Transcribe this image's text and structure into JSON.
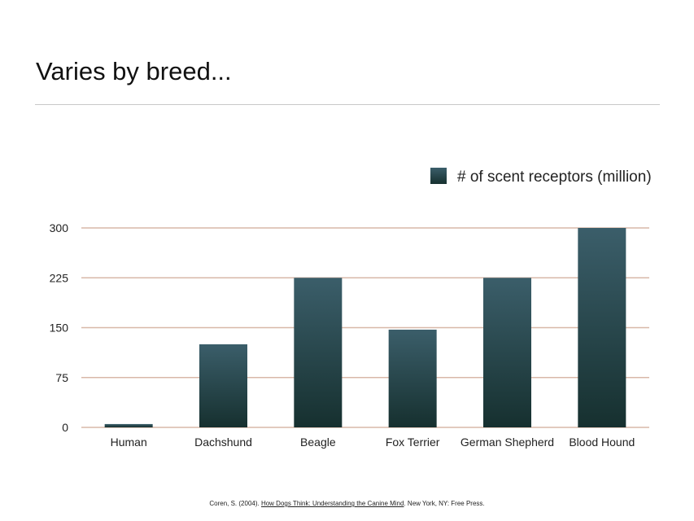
{
  "slide": {
    "title": "Varies by breed..."
  },
  "citation": {
    "prefix": "Coren, S. (2004). ",
    "link_text": "How Dogs Think: Understanding the Canine Mind",
    "suffix": ". New York, NY: Free Press."
  },
  "colors": {
    "bar_top": "#3b5e6a",
    "bar_bottom": "#16302f",
    "gridline": "#d8b8a8",
    "axis_text": "#222222"
  },
  "chart_data": {
    "type": "bar",
    "categories": [
      "Human",
      "Dachshund",
      "Beagle",
      "Fox Terrier",
      "German Shepherd",
      "Blood Hound"
    ],
    "series": [
      {
        "name": "# of scent receptors (million)",
        "values": [
          5,
          125,
          225,
          147,
          225,
          300
        ]
      }
    ],
    "yticks": [
      0,
      75,
      150,
      225,
      300
    ],
    "ylim": [
      0,
      300
    ],
    "legend": "top-right",
    "grid": true
  }
}
